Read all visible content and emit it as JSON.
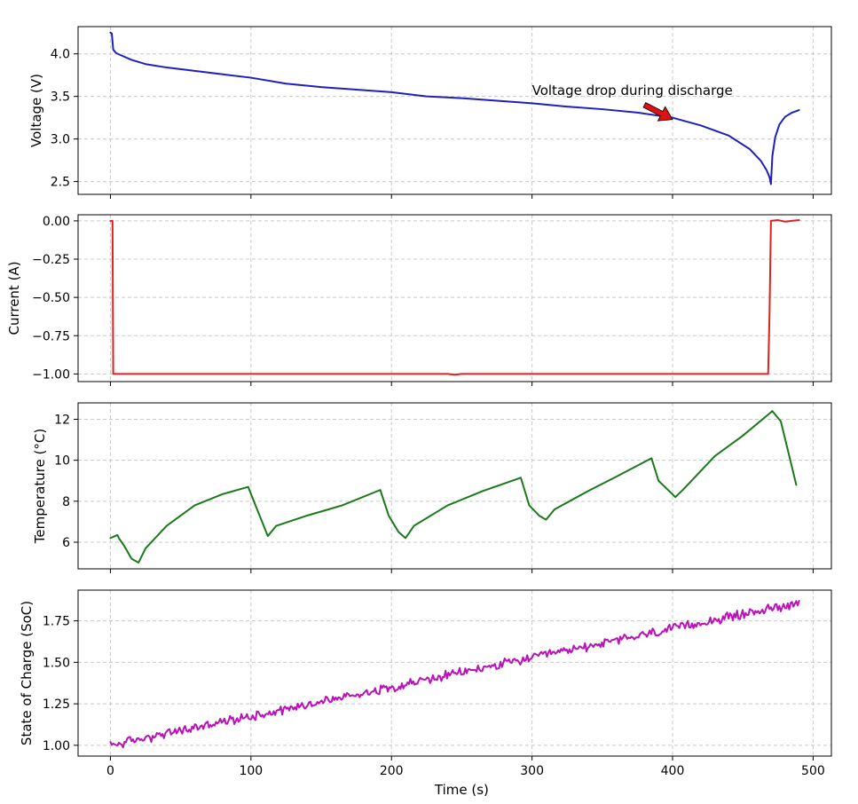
{
  "chart_data": [
    {
      "type": "line",
      "ylabel": "Voltage (V)",
      "xlabel": "",
      "xlim": [
        -23,
        513
      ],
      "ylim": [
        2.35,
        4.32
      ],
      "grid": true,
      "xticks": [
        0,
        100,
        200,
        300,
        400,
        500
      ],
      "yticks": [
        2.5,
        3.0,
        3.5,
        4.0
      ],
      "ytick_labels": [
        "2.5",
        "3.0",
        "3.5",
        "4.0"
      ],
      "show_x_tick_labels": false,
      "series": [
        {
          "color": "#1f1fbf",
          "x": [
            0,
            1,
            2,
            4,
            8,
            15,
            25,
            40,
            60,
            80,
            100,
            125,
            150,
            175,
            200,
            225,
            250,
            275,
            300,
            325,
            350,
            375,
            400,
            420,
            440,
            455,
            463,
            467,
            469,
            470,
            471,
            473,
            476,
            480,
            485,
            490
          ],
          "y": [
            4.25,
            4.24,
            4.05,
            4.01,
            3.98,
            3.93,
            3.88,
            3.84,
            3.8,
            3.76,
            3.72,
            3.65,
            3.61,
            3.58,
            3.55,
            3.5,
            3.48,
            3.45,
            3.42,
            3.38,
            3.35,
            3.31,
            3.25,
            3.16,
            3.04,
            2.88,
            2.74,
            2.63,
            2.55,
            2.47,
            2.8,
            3.02,
            3.17,
            3.26,
            3.31,
            3.34
          ]
        }
      ],
      "annotation": {
        "text": "Voltage drop during discharge",
        "text_x": 300,
        "text_y": 3.52,
        "arrow_tip_x": 400,
        "arrow_tip_y": 3.23,
        "arrow_tail_x": 380,
        "arrow_tail_y": 3.4,
        "arrow_color": "#dd1111"
      }
    },
    {
      "type": "line",
      "ylabel": "Current (A)",
      "xlabel": "",
      "xlim": [
        -23,
        513
      ],
      "ylim": [
        -1.05,
        0.04
      ],
      "grid": true,
      "xticks": [
        0,
        100,
        200,
        300,
        400,
        500
      ],
      "yticks": [
        -1.0,
        -0.75,
        -0.5,
        -0.25,
        0.0
      ],
      "ytick_labels": [
        "−1.00",
        "−0.75",
        "−0.50",
        "−0.25",
        "0.00"
      ],
      "show_x_tick_labels": false,
      "series": [
        {
          "color": "#e02020",
          "x": [
            0,
            1.5,
            2,
            240,
            245,
            250,
            468,
            469,
            470,
            475,
            480,
            490
          ],
          "y": [
            0.0,
            0.0,
            -1.0,
            -1.0,
            -1.005,
            -1.0,
            -1.0,
            -0.6,
            0.0,
            0.005,
            -0.005,
            0.005
          ]
        }
      ]
    },
    {
      "type": "line",
      "ylabel": "Temperature (°C)",
      "xlabel": "",
      "xlim": [
        -23,
        513
      ],
      "ylim": [
        4.7,
        12.8
      ],
      "grid": true,
      "xticks": [
        0,
        100,
        200,
        300,
        400,
        500
      ],
      "yticks": [
        6,
        8,
        10,
        12
      ],
      "ytick_labels": [
        "6",
        "8",
        "10",
        "12"
      ],
      "show_x_tick_labels": false,
      "series": [
        {
          "color": "#1a7a1a",
          "x": [
            0,
            5,
            6,
            10,
            15,
            20,
            25,
            40,
            60,
            80,
            98,
            105,
            112,
            118,
            140,
            165,
            192,
            198,
            205,
            210,
            216,
            240,
            265,
            292,
            298,
            305,
            310,
            316,
            340,
            360,
            385,
            390,
            396,
            402,
            408,
            430,
            450,
            471,
            477,
            482,
            488
          ],
          "y": [
            6.2,
            6.35,
            6.2,
            5.8,
            5.2,
            5.0,
            5.7,
            6.8,
            7.8,
            8.35,
            8.7,
            7.5,
            6.3,
            6.8,
            7.3,
            7.8,
            8.55,
            7.3,
            6.5,
            6.2,
            6.8,
            7.8,
            8.5,
            9.15,
            7.8,
            7.3,
            7.1,
            7.6,
            8.5,
            9.2,
            10.1,
            9.0,
            8.6,
            8.2,
            8.6,
            10.2,
            11.2,
            12.4,
            11.9,
            10.5,
            8.8
          ]
        }
      ]
    },
    {
      "type": "line",
      "ylabel": "State of Charge (SoC)",
      "xlabel": "Time (s)",
      "xlim": [
        -23,
        513
      ],
      "ylim": [
        0.935,
        1.935
      ],
      "grid": true,
      "xticks": [
        0,
        100,
        200,
        300,
        400,
        500
      ],
      "xtick_labels": [
        "0",
        "100",
        "200",
        "300",
        "400",
        "500"
      ],
      "yticks": [
        1.0,
        1.25,
        1.5,
        1.75
      ],
      "ytick_labels": [
        "1.00",
        "1.25",
        "1.50",
        "1.75"
      ],
      "show_x_tick_labels": true,
      "series": [
        {
          "color": "#bb11bb",
          "x": [
            0,
            490
          ],
          "y": [
            1.0,
            1.86
          ],
          "noise": 0.022,
          "points": 490
        }
      ]
    }
  ]
}
